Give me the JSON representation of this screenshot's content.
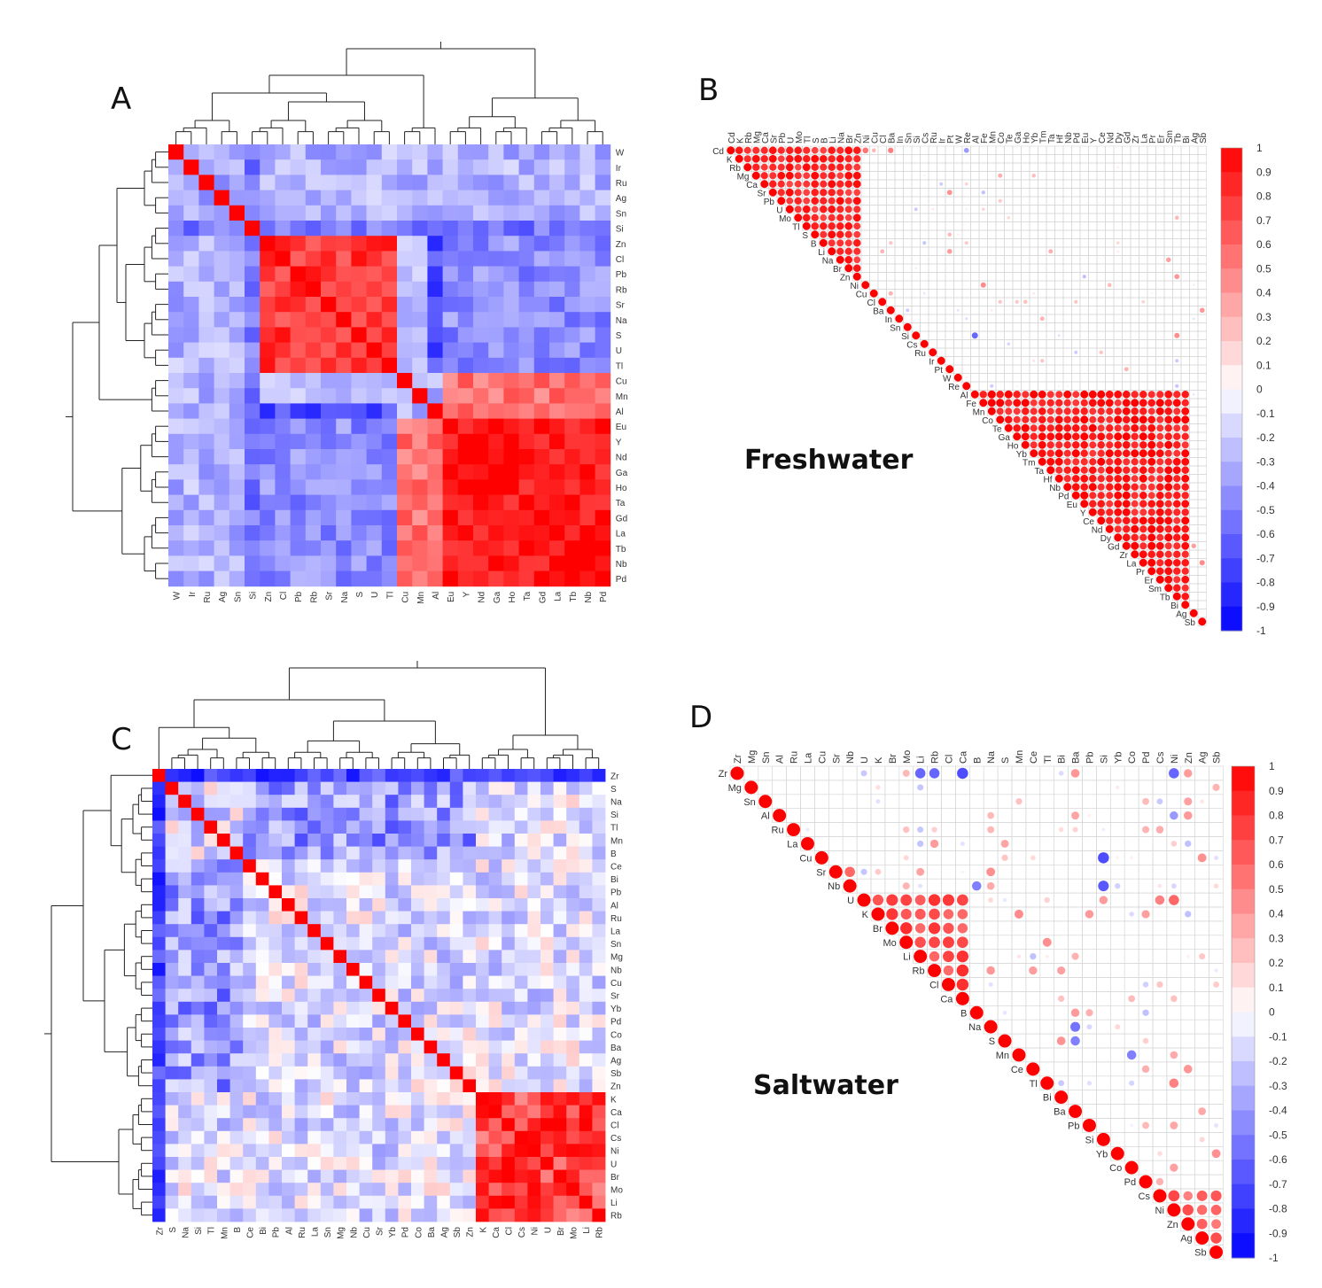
{
  "chart_data": [
    {
      "panel": "A",
      "type": "heatmap",
      "title": "",
      "subtitle": "hierarchically clustered correlation matrix with dendrograms",
      "row_labels": [
        "W",
        "Ir",
        "Ru",
        "Ag",
        "Sn",
        "Si",
        "Zn",
        "Cl",
        "Pb",
        "Rb",
        "Sr",
        "Na",
        "S",
        "U",
        "Tl",
        "Cu",
        "Mn",
        "Al",
        "Eu",
        "Y",
        "Nd",
        "Ga",
        "Ho",
        "Ta",
        "Gd",
        "La",
        "Tb",
        "Nb",
        "Pd"
      ],
      "col_labels": [
        "W",
        "Ir",
        "Ru",
        "Ag",
        "Sn",
        "Si",
        "Zn",
        "Cl",
        "Pb",
        "Rb",
        "Sr",
        "Na",
        "S",
        "U",
        "Tl",
        "Cu",
        "Mn",
        "Al",
        "Eu",
        "Y",
        "Nd",
        "Ga",
        "Ho",
        "Ta",
        "Gd",
        "La",
        "Tb",
        "Nb",
        "Pd"
      ],
      "color_scale": {
        "min": -1,
        "max": 1,
        "low": "#0000ff",
        "mid": "#ffffff",
        "high": "#ff0000"
      },
      "cluster_blocks": [
        {
          "members": [
            "W",
            "Ir",
            "Ru",
            "Ag",
            "Sn"
          ],
          "value": -0.35
        },
        {
          "members": [
            "Zn",
            "Cl",
            "Pb",
            "Rb",
            "Sr",
            "Na",
            "S",
            "U",
            "Tl"
          ],
          "value": 0.78
        },
        {
          "members": [
            "Eu",
            "Y",
            "Nd",
            "Ga",
            "Ho",
            "Ta",
            "Gd",
            "La",
            "Tb",
            "Nb",
            "Pd"
          ],
          "value": 0.93
        }
      ],
      "overview_values": {
        "diagonal": 1.0,
        "within_alkali_block": 0.78,
        "within_ree_block": 0.93,
        "alkali_vs_ree": -0.45,
        "ree_vs_cu_mn_al": 0.55,
        "si_vs_others": -0.55,
        "al_vs_alkali": -0.7,
        "background": -0.3
      }
    },
    {
      "panel": "B",
      "type": "heatmap",
      "subtitle": "correlation plot (upper triangle, circles)",
      "caption": "Freshwater",
      "variables": [
        "Cd",
        "K",
        "Rb",
        "Mg",
        "Ca",
        "Sr",
        "Pb",
        "U",
        "Mo",
        "Tl",
        "S",
        "B",
        "Li",
        "Na",
        "Br",
        "Zn",
        "Ni",
        "Cu",
        "Cl",
        "Ba",
        "In",
        "Sn",
        "Si",
        "Cs",
        "Ru",
        "Ir",
        "Pt",
        "W",
        "Re",
        "Al",
        "Fe",
        "Mn",
        "Co",
        "Te",
        "Ga",
        "Ho",
        "Yb",
        "Tm",
        "Ta",
        "Hf",
        "Nb",
        "Pd",
        "Eu",
        "Y",
        "Ce",
        "Nd",
        "Dy",
        "Gd",
        "Zr",
        "La",
        "Pr",
        "Er",
        "Sm",
        "Tb",
        "Bi",
        "Ag",
        "Sb"
      ],
      "colorbar_ticks": [
        "1",
        "0.9",
        "0.8",
        "0.7",
        "0.6",
        "0.5",
        "0.4",
        "0.3",
        "0.2",
        "0.1",
        "0",
        "-0.1",
        "-0.2",
        "-0.3",
        "-0.4",
        "-0.5",
        "-0.6",
        "-0.7",
        "-0.8",
        "-0.9",
        "-1"
      ],
      "cluster_blocks": [
        {
          "first": "Cd",
          "last": "Zn",
          "value": 0.85
        },
        {
          "first": "Al",
          "last": "Bi",
          "value": 0.9
        }
      ],
      "notable_cells": [
        {
          "a": "Cd",
          "b": "Ni",
          "value": 0.55
        },
        {
          "a": "Cd",
          "b": "Ba",
          "value": 0.5
        },
        {
          "a": "Ni",
          "b": "Fe",
          "value": 0.45
        },
        {
          "a": "Si",
          "b": "Al",
          "value": -0.6
        },
        {
          "a": "Cd",
          "b": "Re",
          "value": -0.4
        },
        {
          "a": "Ba",
          "b": "Sb",
          "value": 0.4
        }
      ]
    },
    {
      "panel": "C",
      "type": "heatmap",
      "subtitle": "hierarchically clustered correlation matrix with dendrograms",
      "row_labels": [
        "Zr",
        "S",
        "Na",
        "Si",
        "Tl",
        "Mn",
        "B",
        "Ce",
        "Bi",
        "Pb",
        "Al",
        "Ru",
        "La",
        "Sn",
        "Mg",
        "Nb",
        "Cu",
        "Sr",
        "Yb",
        "Pd",
        "Co",
        "Ba",
        "Ag",
        "Sb",
        "Zn",
        "K",
        "Ca",
        "Cl",
        "Cs",
        "Ni",
        "U",
        "Br",
        "Mo",
        "Li",
        "Rb"
      ],
      "col_labels": [
        "Zr",
        "S",
        "Na",
        "Si",
        "Tl",
        "Mn",
        "B",
        "Ce",
        "Bi",
        "Pb",
        "Al",
        "Ru",
        "La",
        "Sn",
        "Mg",
        "Nb",
        "Cu",
        "Sr",
        "Yb",
        "Pd",
        "Co",
        "Ba",
        "Ag",
        "Sb",
        "Zn",
        "K",
        "Ca",
        "Cl",
        "Cs",
        "Ni",
        "U",
        "Br",
        "Mo",
        "Li",
        "Rb"
      ],
      "color_scale": {
        "min": -1,
        "max": 1,
        "low": "#0000ff",
        "mid": "#ffffff",
        "high": "#ff0000"
      },
      "cluster_blocks": [
        {
          "members": [
            "K",
            "Ca",
            "Cl",
            "Cs",
            "Ni",
            "U",
            "Br",
            "Mo",
            "Li",
            "Rb"
          ],
          "value": 0.75
        }
      ],
      "overview_values": {
        "diagonal": 1.0,
        "zr_vs_all": -0.75,
        "sodium_group_vs_middle": -0.4,
        "background": -0.1
      }
    },
    {
      "panel": "D",
      "type": "heatmap",
      "subtitle": "correlation plot (upper triangle, circles)",
      "caption": "Saltwater",
      "variables": [
        "Zr",
        "Mg",
        "Sn",
        "Al",
        "Ru",
        "La",
        "Cu",
        "Sr",
        "Nb",
        "U",
        "K",
        "Br",
        "Mo",
        "Li",
        "Rb",
        "Cl",
        "Ca",
        "B",
        "Na",
        "S",
        "Mn",
        "Ce",
        "Tl",
        "Bi",
        "Ba",
        "Pb",
        "Si",
        "Yb",
        "Co",
        "Pd",
        "Cs",
        "Ni",
        "Zn",
        "Ag",
        "Sb"
      ],
      "colorbar_ticks": [
        "1",
        "0.9",
        "0.8",
        "0.7",
        "0.6",
        "0.5",
        "0.4",
        "0.3",
        "0.2",
        "0.1",
        "0",
        "-0.1",
        "-0.2",
        "-0.3",
        "-0.4",
        "-0.5",
        "-0.6",
        "-0.7",
        "-0.8",
        "-0.9",
        "-1"
      ],
      "cluster_blocks": [
        {
          "first": "U",
          "last": "Ca",
          "value": 0.7
        },
        {
          "first": "Cs",
          "last": "Sb",
          "value": 0.6
        }
      ],
      "notable_cells": [
        {
          "a": "Zr",
          "b": "Ca",
          "value": -0.7
        },
        {
          "a": "Zr",
          "b": "Li",
          "value": -0.6
        },
        {
          "a": "Zr",
          "b": "Rb",
          "value": -0.6
        },
        {
          "a": "Zr",
          "b": "Ni",
          "value": -0.6
        },
        {
          "a": "Cu",
          "b": "Si",
          "value": -0.7
        },
        {
          "a": "Nb",
          "b": "Si",
          "value": -0.65
        },
        {
          "a": "Nb",
          "b": "B",
          "value": -0.5
        },
        {
          "a": "Sr",
          "b": "Nb",
          "value": 0.6
        },
        {
          "a": "K",
          "b": "Pb",
          "value": 0.4
        },
        {
          "a": "U",
          "b": "Ni",
          "value": 0.6
        },
        {
          "a": "U",
          "b": "Cs",
          "value": 0.5
        },
        {
          "a": "Na",
          "b": "Ba",
          "value": -0.55
        },
        {
          "a": "S",
          "b": "Ba",
          "value": -0.5
        },
        {
          "a": "Mn",
          "b": "Co",
          "value": -0.5
        },
        {
          "a": "Tl",
          "b": "Ni",
          "value": 0.5
        },
        {
          "a": "Mg",
          "b": "Sb",
          "value": 0.3
        },
        {
          "a": "Al",
          "b": "Ni",
          "value": -0.4
        },
        {
          "a": "Pb",
          "b": "Ni",
          "value": 0.35
        }
      ]
    }
  ],
  "panels": {
    "a": {
      "letter": "A"
    },
    "b": {
      "letter": "B",
      "caption": "Freshwater"
    },
    "c": {
      "letter": "C"
    },
    "d": {
      "letter": "D",
      "caption": "Saltwater"
    }
  }
}
